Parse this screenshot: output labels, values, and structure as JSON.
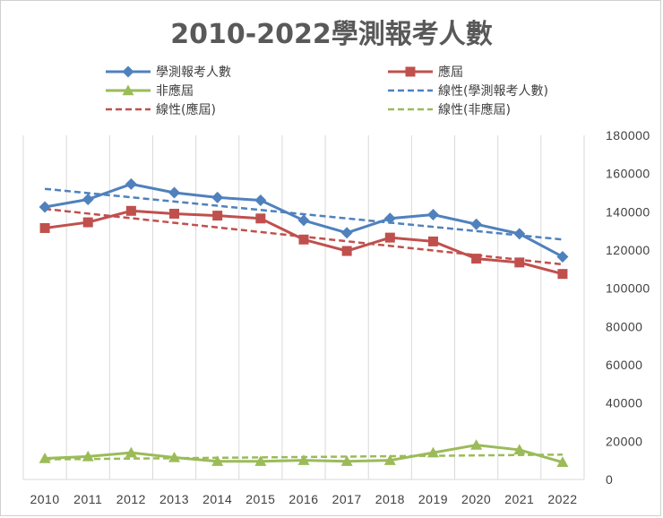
{
  "chart_data": {
    "type": "line",
    "title": "2010-2022學測報考人數",
    "categories": [
      "2010",
      "2011",
      "2012",
      "2013",
      "2014",
      "2015",
      "2016",
      "2017",
      "2018",
      "2019",
      "2020",
      "2021",
      "2022"
    ],
    "ylim": [
      0,
      180000
    ],
    "yticks": [
      "0",
      "20000",
      "40000",
      "60000",
      "80000",
      "100000",
      "120000",
      "140000",
      "160000",
      "180000"
    ],
    "grid": "vertical",
    "legend_position": "top",
    "series": [
      {
        "name": "學測報考人數",
        "color": "#4F81BD",
        "marker": "diamond",
        "values": [
          142500,
          146500,
          154500,
          150000,
          147500,
          146000,
          135500,
          129000,
          136500,
          138500,
          133500,
          128500,
          116500
        ]
      },
      {
        "name": "應屆",
        "color": "#C0504D",
        "marker": "square",
        "values": [
          131500,
          134500,
          140500,
          139000,
          138000,
          136500,
          125500,
          119500,
          126500,
          124500,
          115500,
          113500,
          107500
        ]
      },
      {
        "name": "非應屆",
        "color": "#9BBB59",
        "marker": "triangle",
        "values": [
          11000,
          12000,
          14000,
          11500,
          9500,
          9500,
          10000,
          9500,
          10000,
          14000,
          18000,
          15500,
          9000
        ]
      }
    ],
    "trendlines": [
      {
        "name": "線性(學測報考人數)",
        "color": "#4F81BD",
        "start": 152000,
        "end": 125500
      },
      {
        "name": "線性(應屆)",
        "color": "#C0504D",
        "start": 141500,
        "end": 112500
      },
      {
        "name": "線性(非應屆)",
        "color": "#9BBB59",
        "start": 10500,
        "end": 13000
      }
    ]
  }
}
